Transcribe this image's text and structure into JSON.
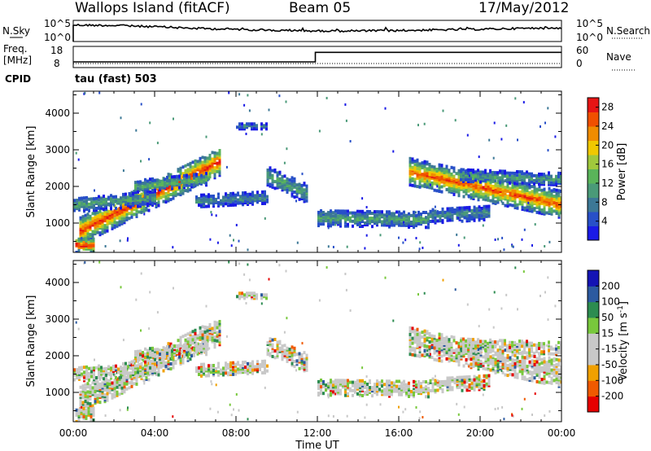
{
  "header": {
    "station": "Wallops Island (fitACF)",
    "beam": "Beam 05",
    "date": "17/May/2012"
  },
  "panels": {
    "nsky": {
      "left_label": "N.Sky",
      "right_label": "N.Search",
      "left_ticks": [
        "10^5",
        "10^0"
      ],
      "right_ticks": [
        "10^5",
        "10^0"
      ]
    },
    "freq": {
      "left_label_1": "Freq.",
      "left_label_2": "[MHz]",
      "left_ticks": [
        "18",
        "8"
      ],
      "right_label": "Nave",
      "right_ticks": [
        "60",
        "0"
      ],
      "cpid_label": "CPID"
    },
    "cpid_text": "tau (fast) 503"
  },
  "colors": {
    "power": [
      "#1a1ae6",
      "#2850c8",
      "#3c7896",
      "#4a9a78",
      "#5ab45a",
      "#a0c83c",
      "#f0c800",
      "#f08c00",
      "#f05000",
      "#e61414"
    ],
    "velocity": [
      "#e60000",
      "#f05a00",
      "#f0a000",
      "#c8c8c8",
      "#c8c8c8",
      "#78c83c",
      "#2c8c50",
      "#2c5aa0",
      "#1414b4"
    ]
  },
  "chart_data": [
    {
      "type": "heatmap",
      "name": "Power",
      "ylabel": "Slant Range [km]",
      "xlabel": "Time UT",
      "x_ticks": [
        "00:00",
        "04:00",
        "08:00",
        "12:00",
        "16:00",
        "20:00",
        "00:00"
      ],
      "y_ticks": [
        "1000",
        "2000",
        "3000",
        "4000"
      ],
      "ylim": [
        200,
        4600
      ],
      "colorbar_label": "Power [dB]",
      "colorbar_ticks": [
        "4",
        "8",
        "12",
        "16",
        "20",
        "24",
        "28"
      ],
      "colorbar_range": [
        0,
        30
      ],
      "bands": [
        {
          "t": [
            0.3,
            7.2
          ],
          "r0": [
            800,
            2700
          ],
          "w": 380,
          "core": 28
        },
        {
          "t": [
            0.0,
            4.0
          ],
          "r0": [
            1500,
            1700
          ],
          "w": 200,
          "core": 12
        },
        {
          "t": [
            3.0,
            6.5
          ],
          "r0": [
            2000,
            2200
          ],
          "w": 160,
          "core": 14
        },
        {
          "t": [
            6.0,
            9.5
          ],
          "r0": [
            1600,
            1700
          ],
          "w": 160,
          "core": 10
        },
        {
          "t": [
            9.5,
            11.5
          ],
          "r0": [
            2300,
            1800
          ],
          "w": 260,
          "core": 12
        },
        {
          "t": [
            12.0,
            17.5
          ],
          "r0": [
            1150,
            1100
          ],
          "w": 220,
          "core": 12
        },
        {
          "t": [
            17.5,
            20.5
          ],
          "r0": [
            1200,
            1300
          ],
          "w": 200,
          "core": 10
        },
        {
          "t": [
            16.5,
            24.0
          ],
          "r0": [
            2400,
            1500
          ],
          "w": 360,
          "core": 26
        },
        {
          "t": [
            19.0,
            24.0
          ],
          "r0": [
            2300,
            2200
          ],
          "w": 160,
          "core": 12
        },
        {
          "t": [
            8.0,
            9.5
          ],
          "r0": [
            3650,
            3650
          ],
          "w": 80,
          "core": 8
        },
        {
          "t": [
            0.1,
            1.0
          ],
          "r0": [
            400,
            400
          ],
          "w": 200,
          "core": 28
        }
      ]
    },
    {
      "type": "heatmap",
      "name": "Velocity",
      "ylabel": "Slant Range [km]",
      "xlabel": "Time UT",
      "x_ticks": [
        "00:00",
        "04:00",
        "08:00",
        "12:00",
        "16:00",
        "20:00",
        "00:00"
      ],
      "y_ticks": [
        "1000",
        "2000",
        "3000",
        "4000"
      ],
      "ylim": [
        200,
        4600
      ],
      "colorbar_label": "Velocity [m s^-1]",
      "colorbar_ticks": [
        "200",
        "100",
        "50",
        "15",
        "-15",
        "-50",
        "-100",
        "-200"
      ],
      "colorbar_range": [
        -250,
        250
      ]
    },
    {
      "type": "line",
      "name": "N.Sky",
      "x": [
        0,
        2,
        4,
        6,
        8,
        10,
        12,
        14,
        16,
        18,
        20,
        22,
        24
      ],
      "y_frac": [
        0.78,
        0.76,
        0.7,
        0.62,
        0.58,
        0.52,
        0.5,
        0.5,
        0.52,
        0.55,
        0.58,
        0.62,
        0.64
      ]
    },
    {
      "type": "line",
      "name": "Freq",
      "x": [
        0,
        11.9,
        11.9,
        24
      ],
      "y": [
        10.7,
        10.7,
        15.2,
        15.2
      ],
      "ylim": [
        8,
        18
      ]
    }
  ]
}
